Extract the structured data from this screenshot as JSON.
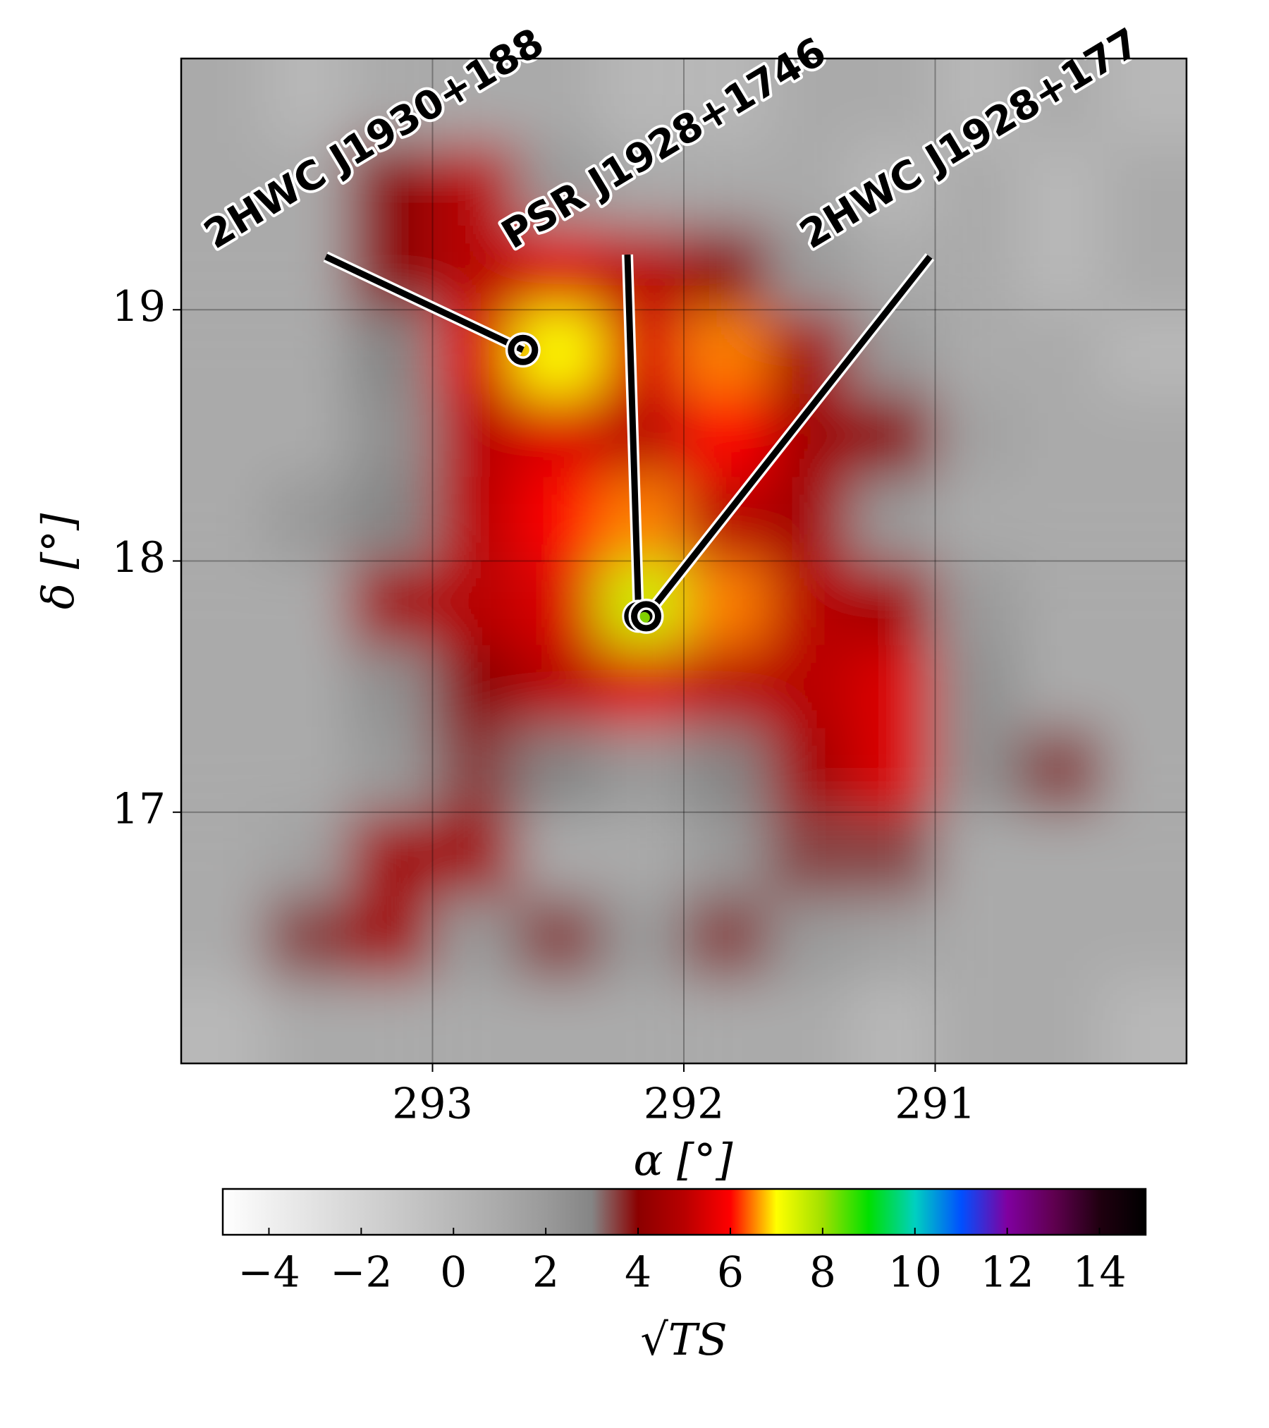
{
  "chart_data": {
    "type": "heatmap",
    "xlabel": "α [°]",
    "ylabel": "δ [°]",
    "xlim": [
      294,
      290
    ],
    "ylim": [
      16,
      20
    ],
    "xticks": [
      293,
      292,
      291
    ],
    "yticks": [
      17,
      18,
      19
    ],
    "grid": true,
    "x": [
      293.83,
      293.5,
      293.17,
      292.83,
      292.5,
      292.17,
      291.83,
      291.5,
      291.17,
      290.83,
      290.5,
      290.17
    ],
    "y": [
      19.83,
      19.5,
      19.17,
      18.83,
      18.5,
      18.17,
      17.83,
      17.5,
      17.17,
      16.83,
      16.5,
      16.17
    ],
    "z": [
      [
        1,
        0,
        1,
        1,
        1,
        0,
        0,
        1,
        1,
        0,
        1,
        0
      ],
      [
        1,
        1,
        4,
        5,
        2,
        1,
        1,
        1,
        0,
        1,
        0,
        1
      ],
      [
        1,
        1,
        4,
        5,
        5.5,
        5,
        4,
        2,
        1,
        1,
        0,
        1
      ],
      [
        1,
        1,
        3,
        5.5,
        7,
        5.5,
        6.5,
        4.5,
        2,
        1,
        1,
        0
      ],
      [
        1,
        1,
        2.5,
        5,
        5.5,
        5,
        6,
        4.5,
        4,
        1.5,
        1,
        1
      ],
      [
        1,
        2,
        3,
        5,
        6,
        6.5,
        5,
        4.5,
        2,
        1,
        1,
        1
      ],
      [
        1,
        1,
        4.5,
        5,
        5.5,
        7.5,
        6.5,
        5,
        4.5,
        2,
        1,
        1
      ],
      [
        1,
        1,
        2.5,
        4,
        5,
        5.5,
        5,
        5,
        5.5,
        2.5,
        1,
        1
      ],
      [
        1,
        1,
        2,
        3.5,
        3,
        2,
        3,
        4.5,
        5.5,
        2.5,
        3.5,
        1
      ],
      [
        1,
        1.5,
        4.5,
        4.5,
        1,
        1,
        2,
        3.5,
        3.5,
        1,
        1,
        1
      ],
      [
        1,
        3.5,
        4.5,
        2,
        3.5,
        2,
        3.5,
        2,
        1.5,
        1,
        1,
        1
      ],
      [
        0,
        1,
        1,
        1,
        1,
        1,
        1,
        1,
        0,
        1,
        1,
        0
      ]
    ],
    "colorbar_label": "√TS",
    "clim": [
      -5,
      15
    ],
    "cticks": [
      {
        "value": -4,
        "label": "−4"
      },
      {
        "value": -2,
        "label": "−2"
      },
      0,
      2,
      4,
      6,
      8,
      10,
      12,
      14
    ],
    "colormap": [
      "#ffffff",
      "#f0f0f0",
      "#e2e2e2",
      "#d4d4d4",
      "#c6c6c6",
      "#b8b8b8",
      "#aaaaaa",
      "#9a9a9a",
      "#858585",
      "#8b0000",
      "#b80000",
      "#ff0000",
      "#ffff00",
      "#a0e000",
      "#00e000",
      "#00d0c0",
      "#0050ff",
      "#8000a0",
      "#600050",
      "#200010",
      "#000000"
    ],
    "sources": [
      {
        "label": "2HWC J1930+188",
        "ra": 292.64,
        "dec": 18.84
      },
      {
        "label": "PSR J1928+1746",
        "ra": 292.18,
        "dec": 17.78
      },
      {
        "label": "2HWC J1928+177",
        "ra": 292.15,
        "dec": 17.78
      }
    ]
  }
}
